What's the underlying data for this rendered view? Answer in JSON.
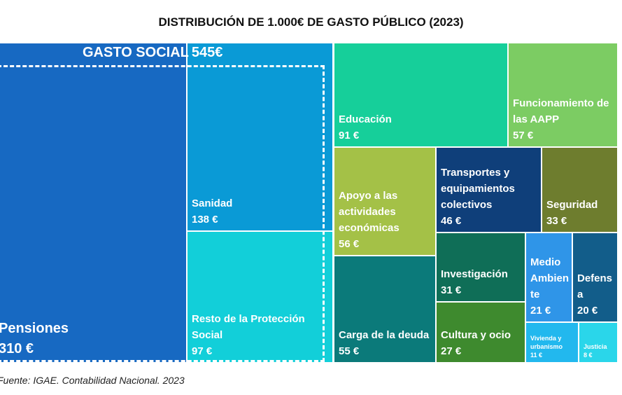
{
  "chart_data": {
    "type": "treemap",
    "title": "DISTRIBUCIÓN DE 1.000€ DE GASTO PÚBLICO (2023)",
    "categories": [
      "Pensiones",
      "Sanidad",
      "Resto de la Protección Social",
      "Educación",
      "Funcionamiento de las AAPP",
      "Apoyo a las actividades económicas",
      "Transportes y equipamientos colectivos",
      "Seguridad",
      "Carga de la deuda",
      "Investigación",
      "Cultura y ocio",
      "Medio Ambiente",
      "Defensa",
      "Vivienda y urbanismo",
      "Justicia"
    ],
    "values": [
      310,
      138,
      97,
      91,
      57,
      56,
      46,
      33,
      55,
      31,
      27,
      21,
      20,
      11,
      8
    ],
    "value_labels": [
      "310 €",
      "138 €",
      "97 €",
      "91 €",
      "57 €",
      "56 €",
      "46 €",
      "33 €",
      "55 €",
      "31 €",
      "27 €",
      "21 €",
      "20 €",
      "11 €",
      "8 €"
    ],
    "colors": [
      "#1769c2",
      "#0a9ad6",
      "#12cfd9",
      "#16cf9a",
      "#7ccc63",
      "#a4c147",
      "#0f3f7a",
      "#6e7d2e",
      "#0b7a7a",
      "#0f6e57",
      "#3e8a2e",
      "#2f95e8",
      "#125d8a",
      "#22b8ee",
      "#2ad6ea"
    ],
    "group": {
      "name": "GASTO SOCIAL",
      "value": 545,
      "value_label": "545€"
    },
    "source": "Fuente: IGAE. Contabilidad Nacional. 2023"
  }
}
